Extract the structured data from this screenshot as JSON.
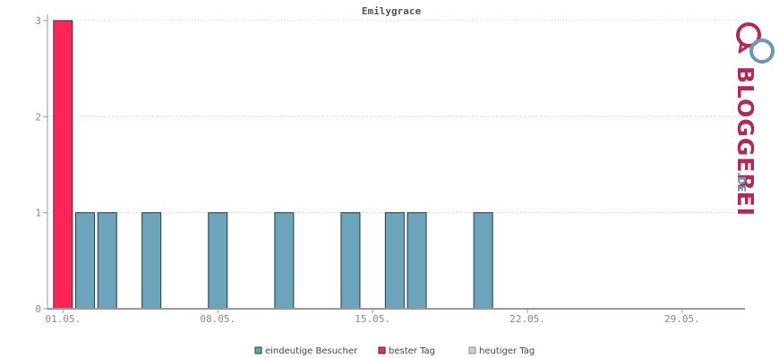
{
  "colors": {
    "visitors": "#6ca4bb",
    "best_day": "#ff2457",
    "today": "#d0d0d0",
    "bar_stroke": "#1f3a44",
    "grid": "#c8c8c8",
    "axis": "#999999",
    "brand_red": "#b02a57",
    "brand_blue": "#6a98b0"
  },
  "brand": {
    "name": "BLOGGEREI",
    "tld": ".DE",
    "icon": "bloggerei-logo-icon"
  },
  "legend": [
    {
      "key": "visitors",
      "label": "eindeutige Besucher"
    },
    {
      "key": "best_day",
      "label": "bester Tag"
    },
    {
      "key": "today",
      "label": "heutiger Tag"
    }
  ],
  "chart_data": {
    "type": "bar",
    "title": "Emilygrace",
    "xlabel": "",
    "ylabel": "",
    "ylim": [
      0,
      3
    ],
    "y_ticks": [
      0,
      1,
      2,
      3
    ],
    "x_tick_labels": [
      "01.05.",
      "08.05.",
      "15.05.",
      "22.05.",
      "29.05."
    ],
    "x_tick_days": [
      1,
      8,
      15,
      22,
      29
    ],
    "days": [
      1,
      2,
      3,
      4,
      5,
      6,
      7,
      8,
      9,
      10,
      11,
      12,
      13,
      14,
      15,
      16,
      17,
      18,
      19,
      20,
      21,
      22,
      23,
      24,
      25,
      26,
      27,
      28,
      29,
      30,
      31
    ],
    "series": [
      {
        "name": "eindeutige Besucher",
        "values": [
          3,
          1,
          1,
          0,
          1,
          0,
          0,
          1,
          0,
          0,
          1,
          0,
          0,
          1,
          0,
          1,
          1,
          0,
          0,
          1,
          0,
          0,
          0,
          0,
          0,
          0,
          0,
          0,
          0,
          0,
          0
        ]
      }
    ],
    "best_day": 1,
    "grid": true,
    "legend_position": "bottom"
  }
}
